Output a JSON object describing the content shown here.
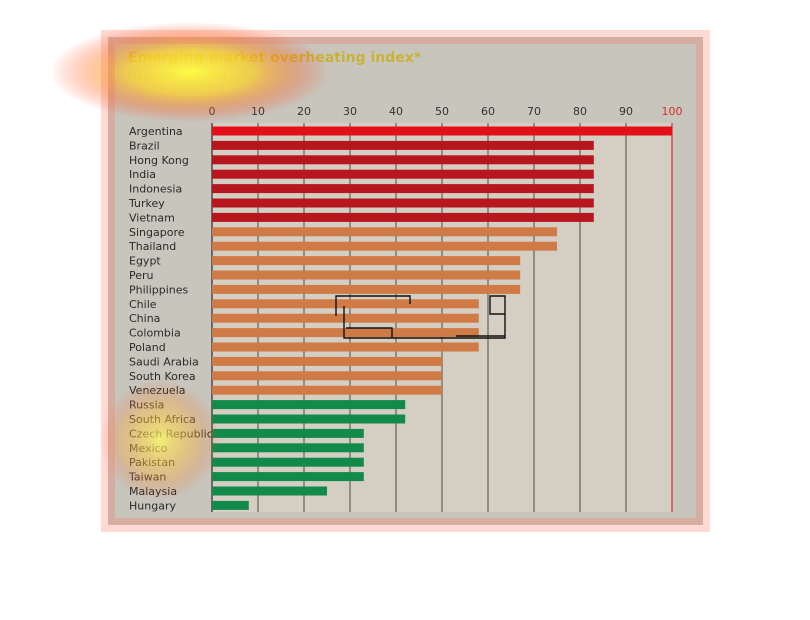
{
  "chart_data": {
    "type": "bar",
    "orientation": "horizontal",
    "title": "Emerging-market overheating index*",
    "subtitle": "Maximum risk=100",
    "xlim": [
      0,
      100
    ],
    "x_ticks": [
      0,
      10,
      20,
      30,
      40,
      50,
      60,
      70,
      80,
      90,
      100
    ],
    "grid": true,
    "categories": [
      "Argentina",
      "Brazil",
      "Hong Kong",
      "India",
      "Indonesia",
      "Turkey",
      "Vietnam",
      "Singapore",
      "Thailand",
      "Egypt",
      "Peru",
      "Philippines",
      "Chile",
      "China",
      "Colombia",
      "Poland",
      "Saudi Arabia",
      "South Korea",
      "Venezuela",
      "Russia",
      "South Africa",
      "Czech Republic",
      "Mexico",
      "Pakistan",
      "Taiwan",
      "Malaysia",
      "Hungary"
    ],
    "values": [
      100,
      83,
      83,
      83,
      83,
      83,
      83,
      75,
      75,
      67,
      67,
      67,
      58,
      58,
      58,
      58,
      50,
      50,
      50,
      42,
      42,
      33,
      33,
      33,
      33,
      25,
      8
    ],
    "colors": {
      "high": "#b8161f",
      "top": "#e3101a",
      "medium": "#d07a45",
      "low": "#128a4a"
    }
  }
}
